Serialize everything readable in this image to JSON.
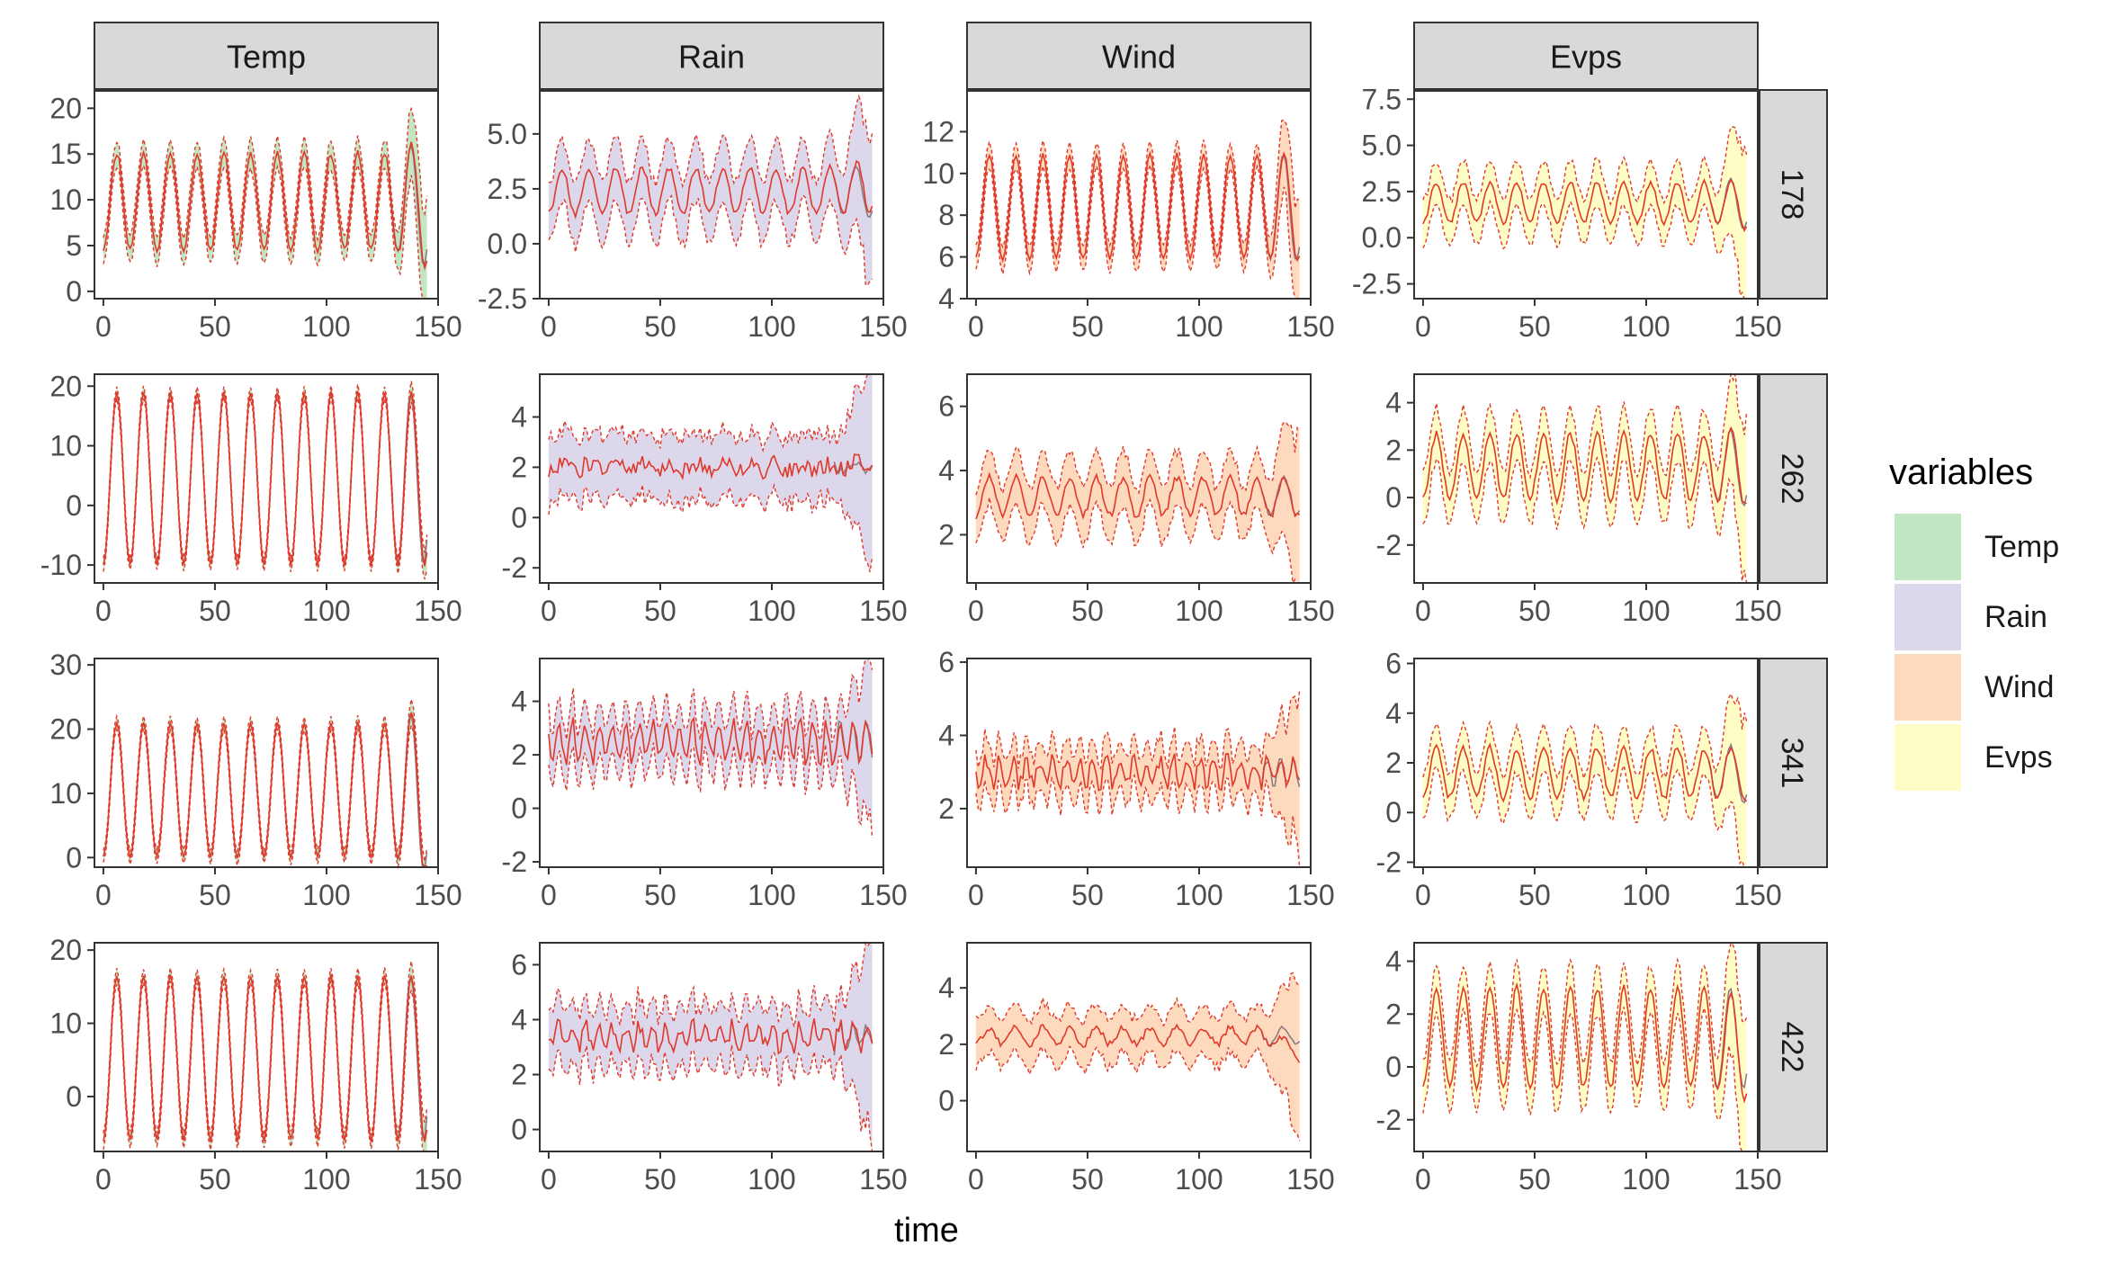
{
  "chart_data": {
    "type": "line",
    "title": "",
    "xlabel": "time",
    "ylabel": "",
    "xlim": [
      -4,
      150
    ],
    "x_ticks": [
      0,
      50,
      100,
      150
    ],
    "columns": [
      "Temp",
      "Rain",
      "Wind",
      "Evps"
    ],
    "rows": [
      "178",
      "262",
      "341",
      "422"
    ],
    "legend": {
      "title": "variables",
      "position": "right",
      "entries": [
        {
          "label": "Temp",
          "color": "#c2e5c2"
        },
        {
          "label": "Rain",
          "color": "#dcd7ea"
        },
        {
          "label": "Wind",
          "color": "#fdd9bd"
        },
        {
          "label": "Evps",
          "color": "#fffdc6"
        }
      ]
    },
    "colors": {
      "prediction_line": "#e0392b",
      "observed_line": "#8c7c86",
      "panel_border": "#333333",
      "strip_fill": "#d9d9d9",
      "axis_text": "#4d4d4d"
    },
    "panels": [
      {
        "row": "178",
        "variable": "Temp",
        "ylim": [
          -0.8,
          22
        ],
        "y_ticks": [
          0,
          5,
          10,
          15,
          20
        ],
        "mean": 9.8,
        "amplitude": 5.3,
        "period": 12,
        "band_halfwidth": 1.5,
        "noise": 0.3,
        "end_spread": 6,
        "end_trend": 0,
        "end_scale": 1.35
      },
      {
        "row": "178",
        "variable": "Rain",
        "ylim": [
          -2.5,
          7
        ],
        "y_ticks": [
          -2.5,
          0.0,
          2.5,
          5.0
        ],
        "mean": 2.4,
        "amplitude": 1.05,
        "period": 12,
        "band_halfwidth": 1.4,
        "noise": 0.15,
        "end_spread": 3,
        "end_trend": 0.3,
        "end_scale": 1.2
      },
      {
        "row": "178",
        "variable": "Wind",
        "ylim": [
          4,
          14
        ],
        "y_ticks": [
          4,
          6,
          8,
          10,
          12
        ],
        "mean": 8.4,
        "amplitude": 2.5,
        "period": 12,
        "band_halfwidth": 0.6,
        "noise": 0.1,
        "end_spread": 3,
        "end_trend": 0,
        "end_scale": 1.05
      },
      {
        "row": "178",
        "variable": "Evps",
        "ylim": [
          -3.3,
          8
        ],
        "y_ticks": [
          -2.5,
          0.0,
          2.5,
          5.0,
          7.5
        ],
        "mean": 1.9,
        "amplitude": 1.1,
        "period": 12,
        "band_halfwidth": 1.2,
        "noise": 0.12,
        "end_spread": 4,
        "end_trend": 0,
        "end_scale": 1.3
      },
      {
        "row": "262",
        "variable": "Temp",
        "ylim": [
          -13,
          22
        ],
        "y_ticks": [
          -10,
          0,
          10,
          20
        ],
        "mean": 4.5,
        "amplitude": 14.5,
        "period": 12,
        "band_halfwidth": 1.0,
        "noise": 0.2,
        "end_spread": 2,
        "end_trend": 0,
        "end_scale": 1.0
      },
      {
        "row": "262",
        "variable": "Rain",
        "ylim": [
          -2.6,
          5.7
        ],
        "y_ticks": [
          -2,
          0,
          2,
          4
        ],
        "mean": 2.0,
        "amplitude": 0.15,
        "period": 12,
        "band_halfwidth": 1.3,
        "noise": 0.35,
        "end_spread": 3,
        "end_trend": 0.2,
        "end_scale": 1.0
      },
      {
        "row": "262",
        "variable": "Wind",
        "ylim": [
          0.5,
          7
        ],
        "y_ticks": [
          2,
          4,
          6
        ],
        "mean": 3.2,
        "amplitude": 0.6,
        "period": 12,
        "band_halfwidth": 0.85,
        "noise": 0.12,
        "end_spread": 2,
        "end_trend": 0,
        "end_scale": 1.0
      },
      {
        "row": "262",
        "variable": "Evps",
        "ylim": [
          -3.6,
          5.2
        ],
        "y_ticks": [
          -2,
          0,
          2,
          4
        ],
        "mean": 1.3,
        "amplitude": 1.4,
        "period": 12,
        "band_halfwidth": 1.1,
        "noise": 0.15,
        "end_spread": 3,
        "end_trend": 0,
        "end_scale": 1.2
      },
      {
        "row": "341",
        "variable": "Temp",
        "ylim": [
          -1.5,
          31
        ],
        "y_ticks": [
          0,
          10,
          20,
          30
        ],
        "mean": 10.5,
        "amplitude": 10.5,
        "period": 12,
        "band_halfwidth": 1.0,
        "noise": 0.2,
        "end_spread": 2,
        "end_trend": 0,
        "end_scale": 1.3
      },
      {
        "row": "341",
        "variable": "Rain",
        "ylim": [
          -2.2,
          5.6
        ],
        "y_ticks": [
          -2,
          0,
          2,
          4
        ],
        "mean": 2.5,
        "amplitude": 0.7,
        "period": 6,
        "band_halfwidth": 1.0,
        "noise": 0.3,
        "end_spread": 3,
        "end_trend": 0,
        "end_scale": 1.0
      },
      {
        "row": "341",
        "variable": "Wind",
        "ylim": [
          0.4,
          6.1
        ],
        "y_ticks": [
          2,
          4,
          6
        ],
        "mean": 3.0,
        "amplitude": 0.35,
        "period": 6,
        "band_halfwidth": 0.65,
        "noise": 0.2,
        "end_spread": 2,
        "end_trend": 0,
        "end_scale": 1.0
      },
      {
        "row": "341",
        "variable": "Evps",
        "ylim": [
          -2.2,
          6.2
        ],
        "y_ticks": [
          -2,
          0,
          2,
          4,
          6
        ],
        "mean": 1.6,
        "amplitude": 1.0,
        "period": 12,
        "band_halfwidth": 0.9,
        "noise": 0.15,
        "end_spread": 3,
        "end_trend": 0,
        "end_scale": 1.2
      },
      {
        "row": "422",
        "variable": "Temp",
        "ylim": [
          -7.5,
          21
        ],
        "y_ticks": [
          0,
          10,
          20
        ],
        "mean": 5.3,
        "amplitude": 11.3,
        "period": 12,
        "band_halfwidth": 1.0,
        "noise": 0.2,
        "end_spread": 2,
        "end_trend": 0,
        "end_scale": 1.0
      },
      {
        "row": "422",
        "variable": "Rain",
        "ylim": [
          -0.8,
          6.8
        ],
        "y_ticks": [
          0,
          2,
          4,
          6
        ],
        "mean": 3.4,
        "amplitude": 0.4,
        "period": 6,
        "band_halfwidth": 1.1,
        "noise": 0.3,
        "end_spread": 3,
        "end_trend": 0,
        "end_scale": 1.0
      },
      {
        "row": "422",
        "variable": "Wind",
        "ylim": [
          -1.8,
          5.6
        ],
        "y_ticks": [
          0,
          2,
          4
        ],
        "mean": 2.3,
        "amplitude": 0.3,
        "period": 12,
        "band_halfwidth": 0.85,
        "noise": 0.12,
        "end_spread": 2.5,
        "end_trend": -0.6,
        "end_scale": 1.0
      },
      {
        "row": "422",
        "variable": "Evps",
        "ylim": [
          -3.2,
          4.7
        ],
        "y_ticks": [
          -2,
          0,
          2,
          4
        ],
        "mean": 1.1,
        "amplitude": 1.9,
        "period": 12,
        "band_halfwidth": 0.9,
        "noise": 0.12,
        "end_spread": 3,
        "end_trend": -0.5,
        "end_scale": 1.0
      }
    ]
  }
}
